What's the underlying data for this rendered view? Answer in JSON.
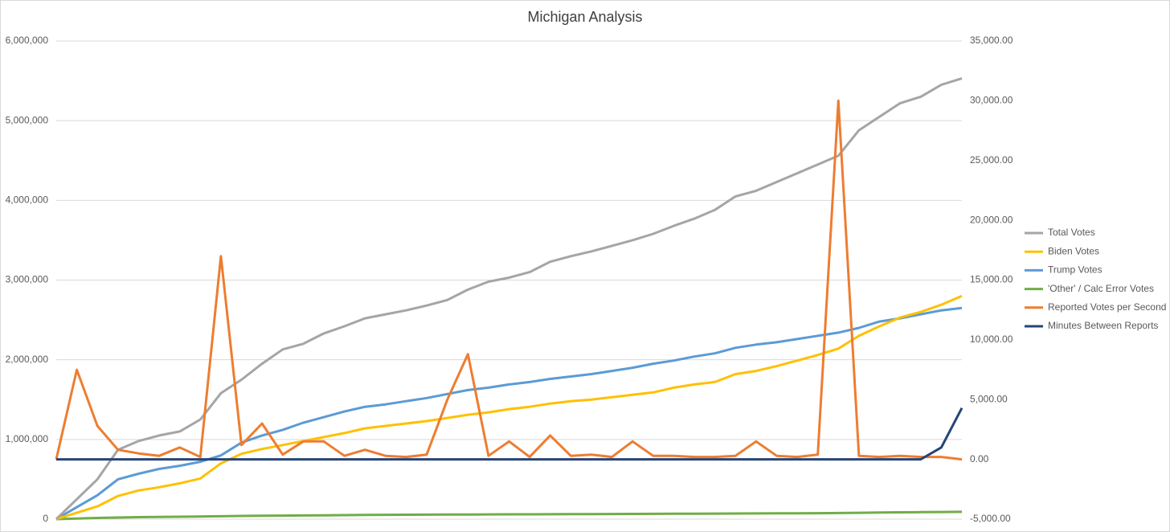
{
  "chart_data": {
    "type": "line",
    "title": "Michigan Analysis",
    "ylim": [
      0,
      6000000
    ],
    "yticks": [
      {
        "value": 0,
        "label": "0"
      },
      {
        "value": 1000000,
        "label": "1,000,000"
      },
      {
        "value": 2000000,
        "label": "2,000,000"
      },
      {
        "value": 3000000,
        "label": "3,000,000"
      },
      {
        "value": 4000000,
        "label": "4,000,000"
      },
      {
        "value": 5000000,
        "label": "5,000,000"
      },
      {
        "value": 6000000,
        "label": "6,000,000"
      }
    ],
    "y2lim": [
      -5000,
      35000
    ],
    "y2ticks": [
      {
        "value": -5000,
        "label": "-5,000.00"
      },
      {
        "value": 0,
        "label": "0.00"
      },
      {
        "value": 5000,
        "label": "5,000.00"
      },
      {
        "value": 10000,
        "label": "10,000.00"
      },
      {
        "value": 15000,
        "label": "15,000.00"
      },
      {
        "value": 20000,
        "label": "20,000.00"
      },
      {
        "value": 25000,
        "label": "25,000.00"
      },
      {
        "value": 30000,
        "label": "30,000.00"
      },
      {
        "value": 35000,
        "label": "35,000.00"
      }
    ],
    "grid": true,
    "legend": "right",
    "series": [
      {
        "name": "Total Votes",
        "color": "#a5a5a5",
        "values": [
          0,
          250000,
          500000,
          870000,
          980000,
          1050000,
          1100000,
          1250000,
          1580000,
          1750000,
          1950000,
          2130000,
          2200000,
          2330000,
          2420000,
          2520000,
          2570000,
          2620000,
          2680000,
          2750000,
          2880000,
          2980000,
          3030000,
          3100000,
          3230000,
          3300000,
          3360000,
          3430000,
          3500000,
          3580000,
          3680000,
          3770000,
          3880000,
          4050000,
          4120000,
          4230000,
          4340000,
          4450000,
          4560000,
          4880000,
          5050000,
          5220000,
          5300000,
          5450000,
          5530000
        ]
      },
      {
        "name": "Biden Votes",
        "color": "#ffc000",
        "values": [
          0,
          80000,
          160000,
          290000,
          360000,
          400000,
          450000,
          510000,
          700000,
          820000,
          880000,
          930000,
          980000,
          1030000,
          1080000,
          1140000,
          1170000,
          1200000,
          1230000,
          1270000,
          1310000,
          1340000,
          1380000,
          1410000,
          1450000,
          1480000,
          1500000,
          1530000,
          1560000,
          1590000,
          1650000,
          1690000,
          1720000,
          1820000,
          1860000,
          1920000,
          1990000,
          2060000,
          2140000,
          2300000,
          2420000,
          2530000,
          2600000,
          2690000,
          2800000
        ]
      },
      {
        "name": "Trump Votes",
        "color": "#5b9bd5",
        "values": [
          0,
          150000,
          300000,
          500000,
          570000,
          630000,
          670000,
          720000,
          800000,
          960000,
          1050000,
          1120000,
          1210000,
          1280000,
          1350000,
          1410000,
          1440000,
          1480000,
          1520000,
          1570000,
          1620000,
          1650000,
          1690000,
          1720000,
          1760000,
          1790000,
          1820000,
          1860000,
          1900000,
          1950000,
          1990000,
          2040000,
          2080000,
          2150000,
          2190000,
          2220000,
          2260000,
          2300000,
          2340000,
          2400000,
          2480000,
          2520000,
          2570000,
          2620000,
          2650000
        ]
      },
      {
        "name": "'Other' / Calc Error Votes",
        "color": "#70ad47",
        "values": [
          0,
          8000,
          15000,
          20000,
          25000,
          28000,
          30000,
          33000,
          36000,
          40000,
          42000,
          44000,
          46000,
          48000,
          50000,
          52000,
          54000,
          55000,
          56000,
          57000,
          58000,
          59000,
          60000,
          61000,
          62000,
          63000,
          64000,
          65000,
          66000,
          67000,
          68000,
          69000,
          70000,
          71000,
          72000,
          73000,
          74000,
          75000,
          77000,
          80000,
          83000,
          86000,
          88000,
          90000,
          92000
        ]
      },
      {
        "name": "Reported Votes per Second",
        "color": "#ed7d31",
        "axis": "y2",
        "values": [
          0,
          7500,
          2800,
          800,
          500,
          300,
          1000,
          200,
          17000,
          1200,
          3000,
          400,
          1500,
          1500,
          300,
          800,
          300,
          200,
          400,
          5000,
          8800,
          300,
          1500,
          200,
          2000,
          300,
          400,
          200,
          1500,
          300,
          300,
          200,
          200,
          300,
          1500,
          300,
          200,
          400,
          30000,
          300,
          200,
          300,
          200,
          200,
          0
        ]
      },
      {
        "name": "Minutes Between Reports",
        "color": "#264478",
        "axis": "y2",
        "values": [
          0,
          0,
          0,
          0,
          0,
          0,
          0,
          0,
          0,
          0,
          0,
          0,
          0,
          0,
          0,
          0,
          0,
          0,
          0,
          0,
          0,
          0,
          0,
          0,
          0,
          0,
          0,
          0,
          0,
          0,
          0,
          0,
          0,
          0,
          0,
          0,
          0,
          0,
          0,
          0,
          0,
          0,
          0,
          1000,
          4300
        ]
      }
    ]
  }
}
